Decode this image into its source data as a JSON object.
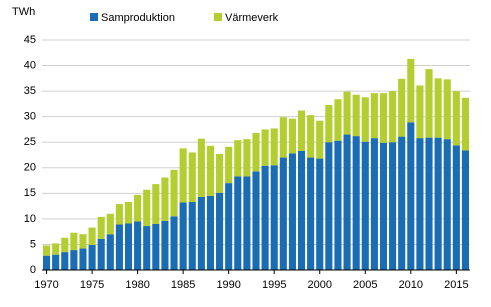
{
  "chart_data": {
    "type": "stacked_bar",
    "y_label": "TWh",
    "x": [
      1970,
      1971,
      1972,
      1973,
      1974,
      1975,
      1976,
      1977,
      1978,
      1979,
      1980,
      1981,
      1982,
      1983,
      1984,
      1985,
      1986,
      1987,
      1988,
      1989,
      1990,
      1991,
      1992,
      1993,
      1994,
      1995,
      1996,
      1997,
      1998,
      1999,
      2000,
      2001,
      2002,
      2003,
      2004,
      2005,
      2006,
      2007,
      2008,
      2009,
      2010,
      2011,
      2012,
      2013,
      2014,
      2015,
      2016
    ],
    "xlim": [
      1969.5,
      2016.5
    ],
    "xticks": [
      1970,
      1975,
      1980,
      1985,
      1990,
      1995,
      2000,
      2005,
      2010,
      2015
    ],
    "ylim": [
      0,
      45
    ],
    "yticks": [
      0,
      5,
      10,
      15,
      20,
      25,
      30,
      35,
      40,
      45
    ],
    "grid": true,
    "legend": "top",
    "series": [
      {
        "name": "Samproduktion",
        "color": "#1b6db3",
        "values": [
          2.8,
          3.0,
          3.5,
          3.9,
          4.2,
          4.9,
          6.1,
          7.0,
          8.9,
          9.1,
          9.5,
          8.6,
          9.0,
          9.6,
          10.5,
          13.2,
          13.3,
          14.3,
          14.5,
          15.1,
          17.0,
          18.3,
          18.3,
          19.3,
          20.4,
          20.5,
          22.0,
          22.8,
          23.3,
          22.0,
          21.8,
          25.0,
          25.3,
          26.5,
          26.2,
          25.1,
          25.8,
          24.9,
          25.0,
          26.1,
          28.9,
          25.8,
          25.9,
          25.9,
          25.6,
          24.4,
          23.4
        ]
      },
      {
        "name": "Värmeverk",
        "color": "#b4cd30",
        "values": [
          2.0,
          2.2,
          2.8,
          3.4,
          2.8,
          3.4,
          4.3,
          4.0,
          4.0,
          4.2,
          5.2,
          7.1,
          7.8,
          8.5,
          9.1,
          10.6,
          9.7,
          11.4,
          9.8,
          7.6,
          7.1,
          7.1,
          7.3,
          7.5,
          7.1,
          7.2,
          7.9,
          6.8,
          7.9,
          8.3,
          7.4,
          7.3,
          8.1,
          8.4,
          8.1,
          8.7,
          8.8,
          9.7,
          10.0,
          11.3,
          12.4,
          10.3,
          13.4,
          11.6,
          11.7,
          10.6,
          10.3
        ]
      }
    ]
  }
}
